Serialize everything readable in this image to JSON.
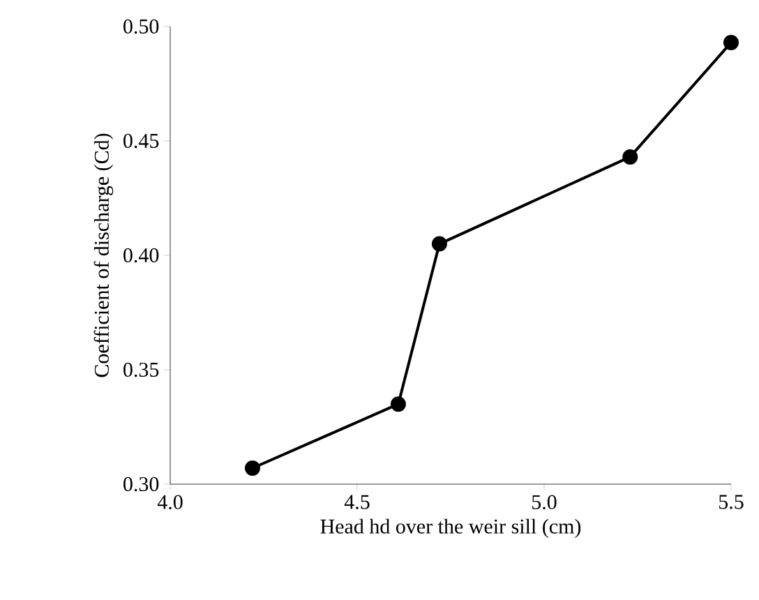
{
  "chart_data": {
    "type": "line",
    "xlabel": "Head hd over the weir sill (cm)",
    "ylabel": "Coefficient of discharge (Cd)",
    "x": [
      4.22,
      4.61,
      4.72,
      5.23,
      5.5
    ],
    "series": [
      {
        "color": "#000000",
        "values": [
          0.307,
          0.335,
          0.405,
          0.443,
          0.493
        ]
      }
    ],
    "xlim": [
      4.0,
      5.5
    ],
    "ylim": [
      0.3,
      0.5
    ],
    "xticks": [
      {
        "value": 4.0,
        "label": "4.0"
      },
      {
        "value": 4.5,
        "label": "4.5"
      },
      {
        "value": 5.0,
        "label": "5.0"
      },
      {
        "value": 5.5,
        "label": "5.5"
      }
    ],
    "yticks": [
      {
        "value": 0.3,
        "label": "0.30"
      },
      {
        "value": 0.35,
        "label": "0.35"
      },
      {
        "value": 0.4,
        "label": "0.40"
      },
      {
        "value": 0.45,
        "label": "0.45"
      },
      {
        "value": 0.5,
        "label": "0.50"
      }
    ],
    "grid": false,
    "marker": "circle",
    "line_style": "solid"
  }
}
